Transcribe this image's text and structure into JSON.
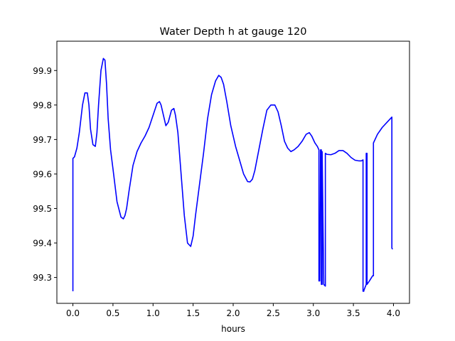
{
  "chart_data": {
    "type": "line",
    "title": "Water Depth h at gauge 120",
    "xlabel": "hours",
    "ylabel": "",
    "xlim": [
      -0.2,
      4.2
    ],
    "ylim": [
      99.225,
      99.985
    ],
    "xticks": [
      0.0,
      0.5,
      1.0,
      1.5,
      2.0,
      2.5,
      3.0,
      3.5,
      4.0
    ],
    "xtick_labels": [
      "0.0",
      "0.5",
      "1.0",
      "1.5",
      "2.0",
      "2.5",
      "3.0",
      "3.5",
      "4.0"
    ],
    "yticks": [
      99.3,
      99.4,
      99.5,
      99.6,
      99.7,
      99.8,
      99.9
    ],
    "ytick_labels": [
      "99.3",
      "99.4",
      "99.5",
      "99.6",
      "99.7",
      "99.8",
      "99.9"
    ],
    "grid": false,
    "series": [
      {
        "name": "",
        "color": "#0000ff",
        "x": [
          0.0,
          0.0,
          0.02,
          0.05,
          0.08,
          0.12,
          0.15,
          0.18,
          0.2,
          0.22,
          0.25,
          0.28,
          0.3,
          0.32,
          0.35,
          0.38,
          0.4,
          0.42,
          0.44,
          0.47,
          0.5,
          0.55,
          0.6,
          0.63,
          0.65,
          0.67,
          0.7,
          0.75,
          0.8,
          0.85,
          0.9,
          0.95,
          1.0,
          1.05,
          1.08,
          1.1,
          1.13,
          1.16,
          1.19,
          1.23,
          1.26,
          1.28,
          1.31,
          1.35,
          1.39,
          1.43,
          1.47,
          1.5,
          1.53,
          1.58,
          1.63,
          1.68,
          1.73,
          1.78,
          1.82,
          1.85,
          1.88,
          1.92,
          1.97,
          2.03,
          2.08,
          2.13,
          2.18,
          2.21,
          2.24,
          2.27,
          2.32,
          2.37,
          2.42,
          2.47,
          2.52,
          2.56,
          2.6,
          2.64,
          2.68,
          2.72,
          2.76,
          2.81,
          2.86,
          2.91,
          2.95,
          2.98,
          3.02,
          3.05,
          3.07,
          3.07,
          3.08,
          3.09,
          3.1,
          3.1,
          3.11,
          3.11,
          3.13,
          3.15,
          3.15,
          3.17,
          3.22,
          3.27,
          3.32,
          3.37,
          3.42,
          3.47,
          3.52,
          3.57,
          3.6,
          3.62,
          3.62,
          3.63,
          3.63,
          3.66,
          3.66,
          3.67,
          3.67,
          3.7,
          3.74,
          3.75,
          3.75,
          3.8,
          3.86,
          3.92,
          3.98,
          3.98,
          3.99
        ],
        "y": [
          99.26,
          99.645,
          99.65,
          99.675,
          99.72,
          99.8,
          99.835,
          99.835,
          99.8,
          99.73,
          99.685,
          99.68,
          99.72,
          99.8,
          99.9,
          99.935,
          99.93,
          99.86,
          99.76,
          99.67,
          99.615,
          99.52,
          99.475,
          99.47,
          99.48,
          99.5,
          99.55,
          99.625,
          99.665,
          99.69,
          99.71,
          99.735,
          99.77,
          99.805,
          99.81,
          99.8,
          99.77,
          99.74,
          99.75,
          99.785,
          99.79,
          99.77,
          99.72,
          99.6,
          99.48,
          99.4,
          99.39,
          99.42,
          99.48,
          99.57,
          99.66,
          99.76,
          99.83,
          99.87,
          99.886,
          99.88,
          99.86,
          99.81,
          99.74,
          99.68,
          99.64,
          99.6,
          99.578,
          99.577,
          99.585,
          99.61,
          99.67,
          99.73,
          99.785,
          99.8,
          99.8,
          99.78,
          99.74,
          99.695,
          99.675,
          99.665,
          99.67,
          99.68,
          99.695,
          99.715,
          99.72,
          99.71,
          99.69,
          99.68,
          99.67,
          99.29,
          99.29,
          99.67,
          99.67,
          99.28,
          99.28,
          99.665,
          99.28,
          99.275,
          99.66,
          99.657,
          99.656,
          99.66,
          99.668,
          99.668,
          99.66,
          99.648,
          99.64,
          99.638,
          99.638,
          99.641,
          99.26,
          99.26,
          99.262,
          99.28,
          99.66,
          99.66,
          99.28,
          99.29,
          99.305,
          99.305,
          99.69,
          99.715,
          99.735,
          99.75,
          99.765,
          99.385,
          99.382
        ]
      }
    ]
  }
}
